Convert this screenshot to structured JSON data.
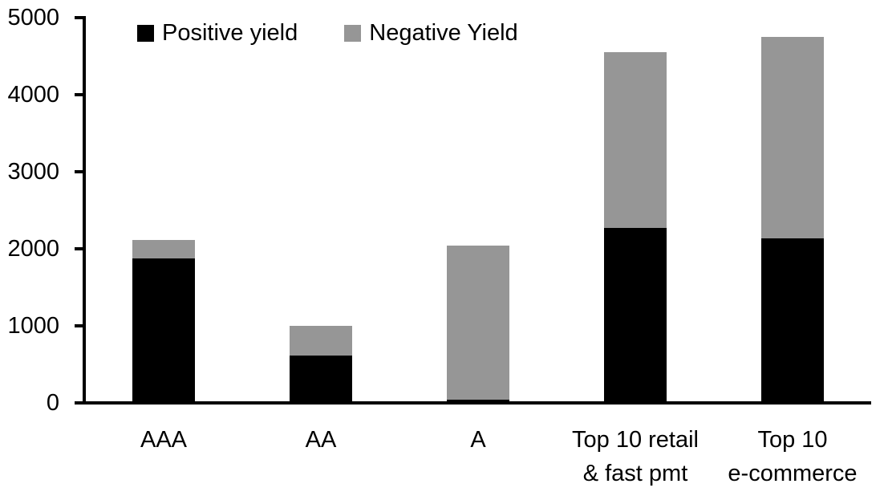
{
  "chart_data": {
    "type": "bar",
    "stacked": true,
    "title": "",
    "xlabel": "",
    "ylabel": "",
    "categories": [
      "AAA",
      "AA",
      "A",
      "Top 10 retail\n& fast pmt",
      "Top 10\ne-commerce"
    ],
    "series": [
      {
        "name": "Positive yield",
        "color": "#000000",
        "values": [
          1880,
          610,
          40,
          2270,
          2140
        ]
      },
      {
        "name": "Negative Yield",
        "color": "#969696",
        "values": [
          230,
          390,
          2000,
          2280,
          2610
        ]
      }
    ],
    "totals": [
      2110,
      1000,
      2040,
      4550,
      4750
    ],
    "ylim": [
      0,
      5000
    ],
    "yticks": [
      0,
      1000,
      2000,
      3000,
      4000,
      5000
    ],
    "legend_position": "top",
    "grid": false,
    "axis_color": "#000000",
    "background": "#ffffff"
  }
}
